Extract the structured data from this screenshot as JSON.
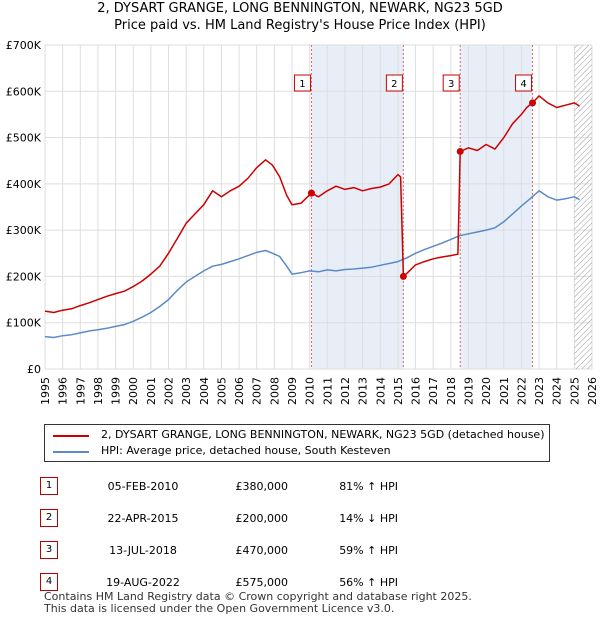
{
  "title_line1": "2, DYSART GRANGE, LONG BENNINGTON, NEWARK, NG23 5GD",
  "title_line2": "Price paid vs. HM Land Registry's House Price Index (HPI)",
  "colors": {
    "property": "#cc0000",
    "hpi": "#5b8ac6",
    "shade": "#e8eef8",
    "marker_line": "#dd6666"
  },
  "chart_data": {
    "type": "line",
    "xlim": [
      1995,
      2026
    ],
    "ylim": [
      0,
      700000
    ],
    "grid": true,
    "y_ticks": [
      {
        "value": 0,
        "label": "£0"
      },
      {
        "value": 100000,
        "label": "£100K"
      },
      {
        "value": 200000,
        "label": "£200K"
      },
      {
        "value": 300000,
        "label": "£300K"
      },
      {
        "value": 400000,
        "label": "£400K"
      },
      {
        "value": 500000,
        "label": "£500K"
      },
      {
        "value": 600000,
        "label": "£600K"
      },
      {
        "value": 700000,
        "label": "£700K"
      }
    ],
    "x_ticks": [
      1995,
      1996,
      1997,
      1998,
      1999,
      2000,
      2001,
      2002,
      2003,
      2004,
      2005,
      2006,
      2007,
      2008,
      2009,
      2010,
      2011,
      2012,
      2013,
      2014,
      2015,
      2016,
      2017,
      2018,
      2019,
      2020,
      2021,
      2022,
      2023,
      2024,
      2025,
      2026
    ],
    "series": [
      {
        "name": "2, DYSART GRANGE, LONG BENNINGTON, NEWARK, NG23 5GD (detached house)",
        "x": [
          1995.0,
          1995.5,
          1996.0,
          1996.5,
          1997.0,
          1997.5,
          1998.0,
          1998.5,
          1999.0,
          1999.5,
          2000.0,
          2000.5,
          2001.0,
          2001.5,
          2002.0,
          2002.5,
          2003.0,
          2003.5,
          2004.0,
          2004.5,
          2005.0,
          2005.5,
          2006.0,
          2006.5,
          2007.0,
          2007.5,
          2007.9,
          2008.3,
          2008.7,
          2009.0,
          2009.5,
          2010.1,
          2010.5,
          2011.0,
          2011.5,
          2012.0,
          2012.5,
          2013.0,
          2013.5,
          2014.0,
          2014.5,
          2015.0,
          2015.15,
          2015.31,
          2015.6,
          2016.0,
          2016.5,
          2017.0,
          2017.5,
          2018.0,
          2018.4,
          2018.53,
          2019.0,
          2019.5,
          2020.0,
          2020.5,
          2021.0,
          2021.5,
          2022.0,
          2022.3,
          2022.63,
          2023.0,
          2023.5,
          2024.0,
          2024.5,
          2025.0,
          2025.3
        ],
        "values": [
          125000,
          122000,
          127000,
          130000,
          137000,
          143000,
          150000,
          157000,
          163000,
          168000,
          178000,
          190000,
          205000,
          222000,
          250000,
          282000,
          315000,
          335000,
          355000,
          385000,
          372000,
          385000,
          395000,
          412000,
          435000,
          452000,
          440000,
          415000,
          375000,
          355000,
          358000,
          380000,
          372000,
          385000,
          395000,
          388000,
          392000,
          385000,
          390000,
          393000,
          400000,
          420000,
          415000,
          200000,
          210000,
          225000,
          232000,
          238000,
          242000,
          245000,
          248000,
          470000,
          478000,
          472000,
          485000,
          475000,
          500000,
          530000,
          550000,
          565000,
          575000,
          590000,
          575000,
          565000,
          570000,
          575000,
          568000
        ]
      },
      {
        "name": "HPI: Average price, detached house, South Kesteven",
        "x": [
          1995.0,
          1995.5,
          1996.0,
          1996.5,
          1997.0,
          1997.5,
          1998.0,
          1998.5,
          1999.0,
          1999.5,
          2000.0,
          2000.5,
          2001.0,
          2001.5,
          2002.0,
          2002.5,
          2003.0,
          2003.5,
          2004.0,
          2004.5,
          2005.0,
          2005.5,
          2006.0,
          2006.5,
          2007.0,
          2007.5,
          2007.9,
          2008.3,
          2008.7,
          2009.0,
          2009.5,
          2010.0,
          2010.5,
          2011.0,
          2011.5,
          2012.0,
          2012.5,
          2013.0,
          2013.5,
          2014.0,
          2014.5,
          2015.0,
          2015.5,
          2016.0,
          2016.5,
          2017.0,
          2017.5,
          2018.0,
          2018.5,
          2019.0,
          2019.5,
          2020.0,
          2020.5,
          2021.0,
          2021.5,
          2022.0,
          2022.5,
          2023.0,
          2023.5,
          2024.0,
          2024.5,
          2025.0,
          2025.3
        ],
        "values": [
          70000,
          68000,
          72000,
          74000,
          78000,
          82000,
          85000,
          88000,
          92000,
          96000,
          103000,
          112000,
          122000,
          135000,
          150000,
          170000,
          188000,
          200000,
          212000,
          222000,
          226000,
          232000,
          238000,
          245000,
          252000,
          256000,
          250000,
          243000,
          222000,
          205000,
          208000,
          212000,
          210000,
          214000,
          212000,
          215000,
          216000,
          218000,
          220000,
          224000,
          228000,
          232000,
          240000,
          250000,
          258000,
          265000,
          272000,
          280000,
          288000,
          292000,
          296000,
          300000,
          305000,
          318000,
          335000,
          352000,
          368000,
          385000,
          372000,
          365000,
          368000,
          372000,
          366000
        ]
      }
    ],
    "sales": [
      {
        "num": "1",
        "x": 2010.1,
        "value": 380000
      },
      {
        "num": "2",
        "x": 2015.31,
        "value": 200000
      },
      {
        "num": "3",
        "x": 2018.53,
        "value": 470000
      },
      {
        "num": "4",
        "x": 2022.63,
        "value": 575000
      }
    ]
  },
  "legend": {
    "property_label": "2, DYSART GRANGE, LONG BENNINGTON, NEWARK, NG23 5GD (detached house)",
    "hpi_label": "HPI: Average price, detached house, South Kesteven"
  },
  "sales_table": [
    {
      "num": "1",
      "date": "05-FEB-2010",
      "price": "£380,000",
      "hpi": "81% ↑ HPI"
    },
    {
      "num": "2",
      "date": "22-APR-2015",
      "price": "£200,000",
      "hpi": "14% ↓ HPI"
    },
    {
      "num": "3",
      "date": "13-JUL-2018",
      "price": "£470,000",
      "hpi": "59% ↑ HPI"
    },
    {
      "num": "4",
      "date": "19-AUG-2022",
      "price": "£575,000",
      "hpi": "56% ↑ HPI"
    }
  ],
  "footer": {
    "line1": "Contains HM Land Registry data © Crown copyright and database right 2025.",
    "line2": "This data is licensed under the Open Government Licence v3.0."
  }
}
